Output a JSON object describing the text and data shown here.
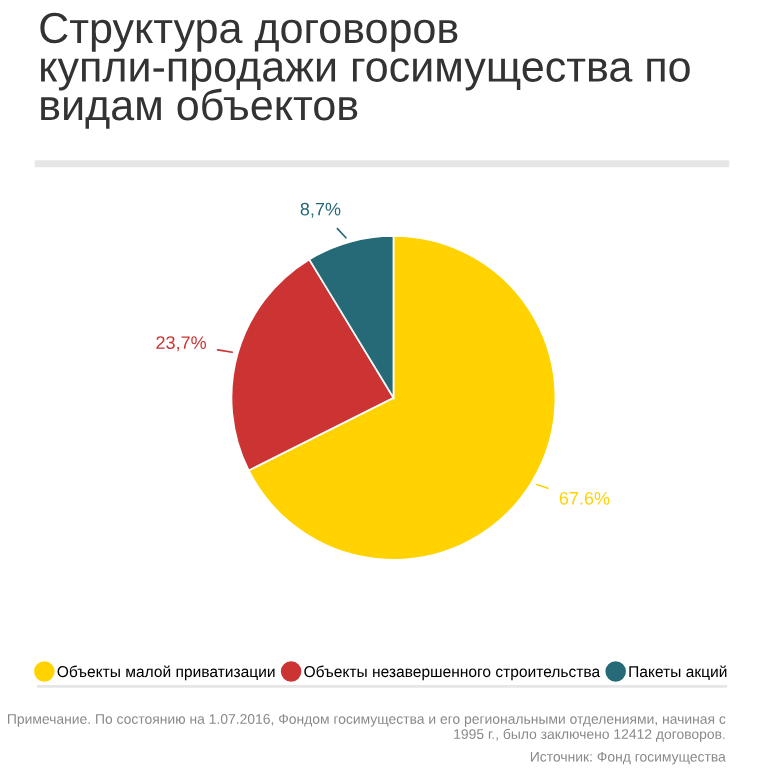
{
  "chart_data": {
    "type": "pie",
    "title": "Структура договоров купли-продажи госимущества по видам объектов",
    "categories": [
      "Объекты малой приватизации",
      "Объекты незавершенного строительства",
      "Пакеты акций"
    ],
    "values": [
      67.6,
      23.7,
      8.7
    ],
    "colors": [
      "#ffd200",
      "#cc3333",
      "#266a78"
    ],
    "value_labels": [
      "67.6%",
      "23,7%",
      "8,7%"
    ],
    "legend": "bottom",
    "annotations": [
      "Примечание. По состоянию на 1.07.2016, Фондом госимущества и его региональными отделениями, начиная с 1995 г., было заключено 12412 договоров.",
      "Источник: Фонд госимущества"
    ]
  }
}
